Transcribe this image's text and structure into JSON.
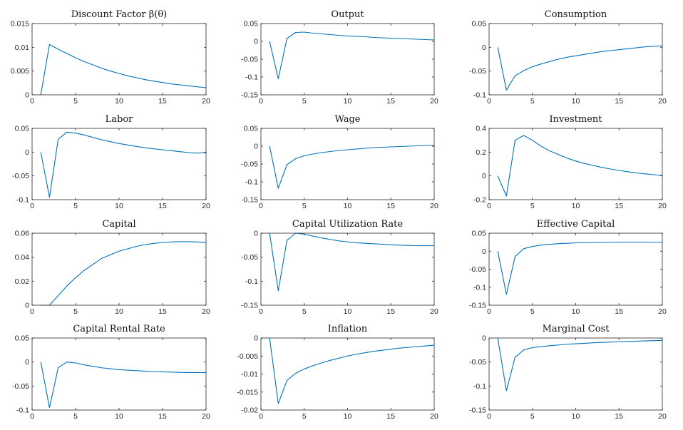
{
  "figure": {
    "line_color": "#0072BD",
    "axis_color": "#262626"
  },
  "chart_data": [
    {
      "type": "line",
      "title": "Discount Factor β(θ)",
      "x": [
        1,
        2,
        3,
        4,
        5,
        6,
        7,
        8,
        9,
        10,
        11,
        12,
        13,
        14,
        15,
        16,
        17,
        18,
        19,
        20
      ],
      "values": [
        0,
        0.0106,
        0.0096,
        0.0087,
        0.0078,
        0.007,
        0.0063,
        0.0056,
        0.005,
        0.0045,
        0.004,
        0.0036,
        0.0032,
        0.0029,
        0.0026,
        0.0023,
        0.0021,
        0.0019,
        0.0017,
        0.0015
      ],
      "xlim": [
        0,
        20
      ],
      "ylim": [
        0,
        0.015
      ],
      "xticks": [
        0,
        5,
        10,
        15,
        20
      ],
      "xtick_labels": [
        "0",
        "5",
        "10",
        "15",
        "20"
      ],
      "yticks": [
        0,
        0.005,
        0.01,
        0.015
      ],
      "ytick_labels": [
        "0",
        "0.005",
        "0.01",
        "0.015"
      ]
    },
    {
      "type": "line",
      "title": "Output",
      "x": [
        1,
        2,
        3,
        4,
        5,
        6,
        7,
        8,
        9,
        10,
        11,
        12,
        13,
        14,
        15,
        16,
        17,
        18,
        19,
        20
      ],
      "values": [
        0,
        -0.105,
        0.008,
        0.025,
        0.026,
        0.023,
        0.021,
        0.019,
        0.017,
        0.015,
        0.014,
        0.013,
        0.011,
        0.01,
        0.009,
        0.008,
        0.007,
        0.006,
        0.005,
        0.004
      ],
      "xlim": [
        0,
        20
      ],
      "ylim": [
        -0.15,
        0.05
      ],
      "xticks": [
        0,
        5,
        10,
        15,
        20
      ],
      "xtick_labels": [
        "0",
        "5",
        "10",
        "15",
        "20"
      ],
      "yticks": [
        -0.15,
        -0.1,
        -0.05,
        0,
        0.05
      ],
      "ytick_labels": [
        "-0.15",
        "-0.1",
        "-0.05",
        "0",
        "0.05"
      ]
    },
    {
      "type": "line",
      "title": "Consumption",
      "x": [
        1,
        2,
        3,
        4,
        5,
        6,
        7,
        8,
        9,
        10,
        11,
        12,
        13,
        14,
        15,
        16,
        17,
        18,
        19,
        20
      ],
      "values": [
        0,
        -0.09,
        -0.06,
        -0.049,
        -0.041,
        -0.035,
        -0.03,
        -0.025,
        -0.021,
        -0.018,
        -0.015,
        -0.012,
        -0.009,
        -0.007,
        -0.005,
        -0.003,
        -0.001,
        0.001,
        0.002,
        0.003
      ],
      "xlim": [
        0,
        20
      ],
      "ylim": [
        -0.1,
        0.05
      ],
      "xticks": [
        0,
        5,
        10,
        15,
        20
      ],
      "xtick_labels": [
        "0",
        "5",
        "10",
        "15",
        "20"
      ],
      "yticks": [
        -0.1,
        -0.05,
        0,
        0.05
      ],
      "ytick_labels": [
        "-0.1",
        "-0.05",
        "0",
        "0.05"
      ]
    },
    {
      "type": "line",
      "title": "Labor",
      "x": [
        1,
        2,
        3,
        4,
        5,
        6,
        7,
        8,
        9,
        10,
        11,
        12,
        13,
        14,
        15,
        16,
        17,
        18,
        19,
        20
      ],
      "values": [
        0,
        -0.095,
        0.027,
        0.042,
        0.04,
        0.036,
        0.031,
        0.026,
        0.022,
        0.018,
        0.015,
        0.012,
        0.009,
        0.007,
        0.005,
        0.003,
        0.001,
        -0.001,
        -0.002,
        -0.001
      ],
      "xlim": [
        0,
        20
      ],
      "ylim": [
        -0.1,
        0.05
      ],
      "xticks": [
        0,
        5,
        10,
        15,
        20
      ],
      "xtick_labels": [
        "0",
        "5",
        "10",
        "15",
        "20"
      ],
      "yticks": [
        -0.1,
        -0.05,
        0,
        0.05
      ],
      "ytick_labels": [
        "-0.1",
        "-0.05",
        "0",
        "0.05"
      ]
    },
    {
      "type": "line",
      "title": "Wage",
      "x": [
        1,
        2,
        3,
        4,
        5,
        6,
        7,
        8,
        9,
        10,
        11,
        12,
        13,
        14,
        15,
        16,
        17,
        18,
        19,
        20
      ],
      "values": [
        0,
        -0.118,
        -0.052,
        -0.035,
        -0.027,
        -0.022,
        -0.018,
        -0.015,
        -0.012,
        -0.01,
        -0.008,
        -0.006,
        -0.004,
        -0.003,
        -0.002,
        -0.001,
        0,
        0.001,
        0.002,
        0.002
      ],
      "xlim": [
        0,
        20
      ],
      "ylim": [
        -0.15,
        0.05
      ],
      "xticks": [
        0,
        5,
        10,
        15,
        20
      ],
      "xtick_labels": [
        "0",
        "5",
        "10",
        "15",
        "20"
      ],
      "yticks": [
        -0.15,
        -0.1,
        -0.05,
        0,
        0.05
      ],
      "ytick_labels": [
        "-0.15",
        "-0.1",
        "-0.05",
        "0",
        "0.05"
      ]
    },
    {
      "type": "line",
      "title": "Investment",
      "x": [
        1,
        2,
        3,
        4,
        5,
        6,
        7,
        8,
        9,
        10,
        11,
        12,
        13,
        14,
        15,
        16,
        17,
        18,
        19,
        20
      ],
      "values": [
        0,
        -0.17,
        0.3,
        0.34,
        0.3,
        0.25,
        0.21,
        0.18,
        0.15,
        0.125,
        0.105,
        0.088,
        0.072,
        0.058,
        0.046,
        0.035,
        0.025,
        0.017,
        0.01,
        0.004
      ],
      "xlim": [
        0,
        20
      ],
      "ylim": [
        -0.2,
        0.4
      ],
      "xticks": [
        0,
        5,
        10,
        15,
        20
      ],
      "xtick_labels": [
        "0",
        "5",
        "10",
        "15",
        "20"
      ],
      "yticks": [
        -0.2,
        0,
        0.2,
        0.4
      ],
      "ytick_labels": [
        "-0.2",
        "0",
        "0.2",
        "0.4"
      ]
    },
    {
      "type": "line",
      "title": "Capital",
      "x": [
        1,
        2,
        3,
        4,
        5,
        6,
        7,
        8,
        9,
        10,
        11,
        12,
        13,
        14,
        15,
        16,
        17,
        18,
        19,
        20
      ],
      "values": [
        0,
        0,
        0.008,
        0.016,
        0.023,
        0.029,
        0.034,
        0.039,
        0.042,
        0.045,
        0.047,
        0.049,
        0.0505,
        0.0515,
        0.0522,
        0.0527,
        0.0529,
        0.0529,
        0.0527,
        0.0523
      ],
      "xlim": [
        0,
        20
      ],
      "ylim": [
        0,
        0.06
      ],
      "xticks": [
        0,
        5,
        10,
        15,
        20
      ],
      "xtick_labels": [
        "0",
        "5",
        "10",
        "15",
        "20"
      ],
      "yticks": [
        0,
        0.02,
        0.04,
        0.06
      ],
      "ytick_labels": [
        "0",
        "0.02",
        "0.04",
        "0.06"
      ]
    },
    {
      "type": "line",
      "title": "Capital Utilization Rate",
      "x": [
        1,
        2,
        3,
        4,
        5,
        6,
        7,
        8,
        9,
        10,
        11,
        12,
        13,
        14,
        15,
        16,
        17,
        18,
        19,
        20
      ],
      "values": [
        0,
        -0.12,
        -0.015,
        0,
        -0.002,
        -0.006,
        -0.01,
        -0.013,
        -0.016,
        -0.018,
        -0.02,
        -0.021,
        -0.022,
        -0.023,
        -0.024,
        -0.025,
        -0.0255,
        -0.026,
        -0.026,
        -0.026
      ],
      "xlim": [
        0,
        20
      ],
      "ylim": [
        -0.15,
        0
      ],
      "xticks": [
        0,
        5,
        10,
        15,
        20
      ],
      "xtick_labels": [
        "0",
        "5",
        "10",
        "15",
        "20"
      ],
      "yticks": [
        -0.15,
        -0.1,
        -0.05,
        0
      ],
      "ytick_labels": [
        "-0.15",
        "-0.1",
        "-0.05",
        "0"
      ]
    },
    {
      "type": "line",
      "title": "Effective Capital",
      "x": [
        1,
        2,
        3,
        4,
        5,
        6,
        7,
        8,
        9,
        10,
        11,
        12,
        13,
        14,
        15,
        16,
        17,
        18,
        19,
        20
      ],
      "values": [
        0,
        -0.12,
        -0.015,
        0.007,
        0.013,
        0.017,
        0.019,
        0.021,
        0.022,
        0.023,
        0.0235,
        0.024,
        0.0245,
        0.025,
        0.025,
        0.025,
        0.025,
        0.025,
        0.025,
        0.0245
      ],
      "xlim": [
        0,
        20
      ],
      "ylim": [
        -0.15,
        0.05
      ],
      "xticks": [
        0,
        5,
        10,
        15,
        20
      ],
      "xtick_labels": [
        "0",
        "5",
        "10",
        "15",
        "20"
      ],
      "yticks": [
        -0.15,
        -0.1,
        -0.05,
        0,
        0.05
      ],
      "ytick_labels": [
        "-0.15",
        "-0.1",
        "-0.05",
        "0",
        "0.05"
      ]
    },
    {
      "type": "line",
      "title": "Capital Rental Rate",
      "x": [
        1,
        2,
        3,
        4,
        5,
        6,
        7,
        8,
        9,
        10,
        11,
        12,
        13,
        14,
        15,
        16,
        17,
        18,
        19,
        20
      ],
      "values": [
        0,
        -0.095,
        -0.012,
        0,
        -0.002,
        -0.006,
        -0.009,
        -0.012,
        -0.014,
        -0.016,
        -0.017,
        -0.018,
        -0.019,
        -0.02,
        -0.0205,
        -0.021,
        -0.0215,
        -0.022,
        -0.022,
        -0.022
      ],
      "xlim": [
        0,
        20
      ],
      "ylim": [
        -0.1,
        0.05
      ],
      "xticks": [
        0,
        5,
        10,
        15,
        20
      ],
      "xtick_labels": [
        "0",
        "5",
        "10",
        "15",
        "20"
      ],
      "yticks": [
        -0.1,
        -0.05,
        0,
        0.05
      ],
      "ytick_labels": [
        "-0.1",
        "-0.05",
        "0",
        "0.05"
      ]
    },
    {
      "type": "line",
      "title": "Inflation",
      "x": [
        1,
        2,
        3,
        4,
        5,
        6,
        7,
        8,
        9,
        10,
        11,
        12,
        13,
        14,
        15,
        16,
        17,
        18,
        19,
        20
      ],
      "values": [
        0,
        -0.0182,
        -0.0118,
        -0.0098,
        -0.0086,
        -0.0077,
        -0.0069,
        -0.0062,
        -0.0056,
        -0.005,
        -0.0045,
        -0.0041,
        -0.0037,
        -0.0034,
        -0.0031,
        -0.0028,
        -0.0026,
        -0.0024,
        -0.0022,
        -0.002
      ],
      "xlim": [
        0,
        20
      ],
      "ylim": [
        -0.02,
        0
      ],
      "xticks": [
        0,
        5,
        10,
        15,
        20
      ],
      "xtick_labels": [
        "0",
        "5",
        "10",
        "15",
        "20"
      ],
      "yticks": [
        -0.02,
        -0.015,
        -0.01,
        -0.005,
        0
      ],
      "ytick_labels": [
        "-0.02",
        "-0.015",
        "-0.01",
        "-0.005",
        "0"
      ]
    },
    {
      "type": "line",
      "title": "Marginal Cost",
      "x": [
        1,
        2,
        3,
        4,
        5,
        6,
        7,
        8,
        9,
        10,
        11,
        12,
        13,
        14,
        15,
        16,
        17,
        18,
        19,
        20
      ],
      "values": [
        0,
        -0.11,
        -0.04,
        -0.025,
        -0.02,
        -0.018,
        -0.016,
        -0.0145,
        -0.013,
        -0.012,
        -0.011,
        -0.01,
        -0.0092,
        -0.0085,
        -0.0078,
        -0.0072,
        -0.0066,
        -0.006,
        -0.0055,
        -0.005
      ],
      "xlim": [
        0,
        20
      ],
      "ylim": [
        -0.15,
        0
      ],
      "xticks": [
        0,
        5,
        10,
        15,
        20
      ],
      "xtick_labels": [
        "0",
        "5",
        "10",
        "15",
        "20"
      ],
      "yticks": [
        -0.15,
        -0.1,
        -0.05,
        0
      ],
      "ytick_labels": [
        "-0.15",
        "-0.1",
        "-0.05",
        "0"
      ]
    }
  ]
}
